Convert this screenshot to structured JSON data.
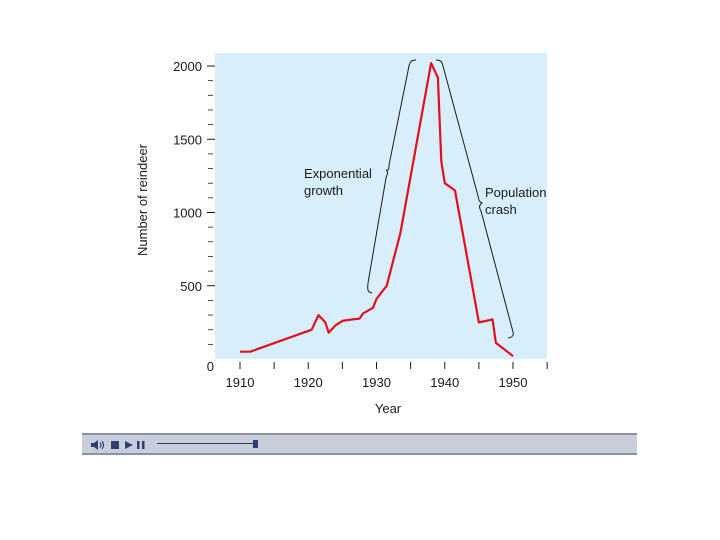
{
  "chart_data": {
    "type": "line",
    "xlabel": "Year",
    "ylabel": "Number of reindeer",
    "xlim": [
      1905,
      1955
    ],
    "ylim": [
      0,
      2050
    ],
    "xticks": [
      1910,
      1920,
      1930,
      1940,
      1950
    ],
    "yticks": [
      0,
      500,
      1000,
      1500,
      2000
    ],
    "grid": false,
    "background_color": "#d9eefb",
    "series_color": "#e0101c",
    "series": [
      {
        "x": [
          1910,
          1911.5,
          1920.5,
          1921.5,
          1922.5,
          1923,
          1924,
          1925,
          1926.5,
          1927.5,
          1928,
          1929.5,
          1930,
          1931.5,
          1933.5,
          1938,
          1939,
          1939.5,
          1940,
          1941.5,
          1945,
          1947,
          1947.5,
          1950
        ],
        "values": [
          50,
          50,
          200,
          300,
          250,
          180,
          230,
          260,
          270,
          275,
          310,
          350,
          410,
          500,
          860,
          2020,
          1920,
          1350,
          1200,
          1150,
          250,
          270,
          110,
          20
        ]
      }
    ],
    "annotations": [
      {
        "lines": [
          "Exponential",
          "growth"
        ]
      },
      {
        "lines": [
          "Population",
          "crash"
        ]
      }
    ]
  },
  "player": {
    "volume_icon": "speaker-icon",
    "stop_icon": "stop-icon",
    "play_icon": "play-icon",
    "pause_icon": "pause-icon",
    "progress": 0.98
  }
}
